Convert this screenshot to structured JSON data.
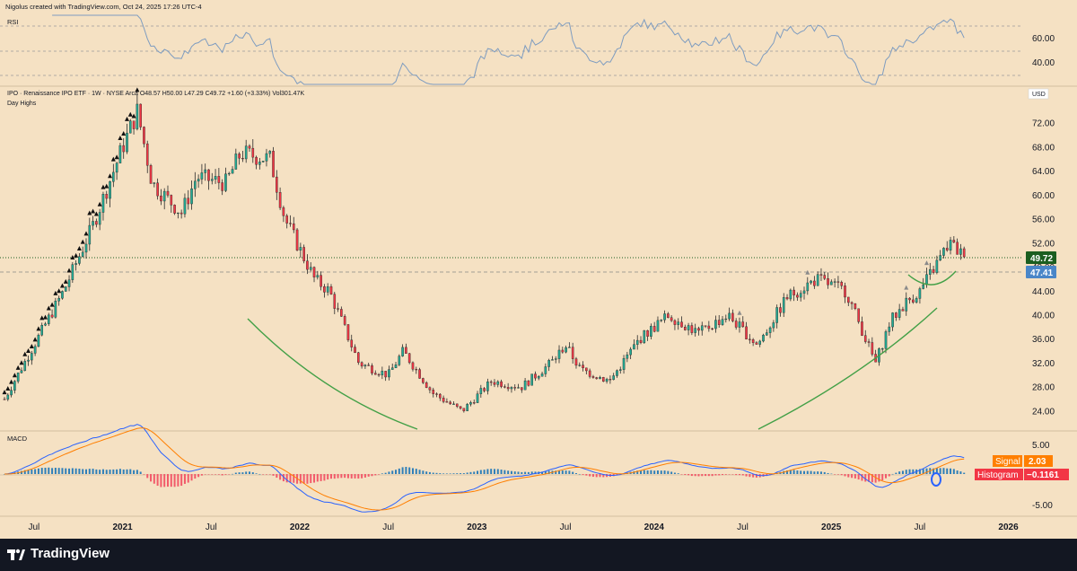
{
  "header": {
    "credit": "Nigolus created with TradingView.com, Oct 24, 2025 17:26 UTC-4"
  },
  "main_pane": {
    "symbol_line": "IPO · Renaissance IPO ETF · 1W · NYSE Arca  O48.57  H50.00  L47.29  C49.72  +1.60 (+3.33%)  Vol301.47K",
    "study_label": "Day Highs",
    "currency": "USD",
    "last_price_label": "49.72",
    "last_price_color": "#1b5e20",
    "ma_price_label": "47.41",
    "ma_price_color": "#4a86c8"
  },
  "rsi_pane": {
    "label": "RSI",
    "ticks": [
      "60.00",
      "40.00"
    ]
  },
  "macd_pane": {
    "label": "MACD",
    "ticks": [
      "5.00",
      "-5.00"
    ],
    "signal_label": "Signal",
    "signal_value": "2.03",
    "histogram_label": "Histogram",
    "histogram_value": "−0.1161",
    "signal_color": "#ff7f00",
    "histogram_color": "#f23645"
  },
  "time_axis": [
    "Jul",
    "2021",
    "Jul",
    "2022",
    "Jul",
    "2023",
    "Jul",
    "2024",
    "Jul",
    "2025",
    "Jul",
    "2026"
  ],
  "footer": {
    "brand": "TradingView"
  },
  "colors": {
    "background": "#f5e1c3",
    "up_candle": "#22ab94",
    "down_candle": "#f23645",
    "rsi_line": "#7e9cc0",
    "macd_line": "#2962ff",
    "signal_line": "#ff7f00",
    "curve": "#43a047"
  },
  "chart_data": {
    "type": "candlestick",
    "timeframe": "1W",
    "x_range": [
      "2020-05",
      "2026-02"
    ],
    "price_axis": {
      "ticks": [
        "72.00",
        "68.00",
        "64.00",
        "60.00",
        "56.00",
        "52.00",
        "48.00",
        "44.00",
        "40.00",
        "36.00",
        "32.00",
        "28.00",
        "24.00"
      ],
      "range": [
        21,
        78
      ]
    },
    "price_path": [
      {
        "date": "2020-05",
        "close": 26
      },
      {
        "date": "2020-07",
        "close": 35
      },
      {
        "date": "2020-09",
        "close": 44
      },
      {
        "date": "2020-11",
        "close": 55
      },
      {
        "date": "2021-01",
        "close": 68
      },
      {
        "date": "2021-02",
        "close": 74
      },
      {
        "date": "2021-03",
        "close": 62
      },
      {
        "date": "2021-05",
        "close": 57
      },
      {
        "date": "2021-06",
        "close": 63
      },
      {
        "date": "2021-08",
        "close": 62
      },
      {
        "date": "2021-09",
        "close": 67
      },
      {
        "date": "2021-11",
        "close": 66
      },
      {
        "date": "2021-12",
        "close": 56
      },
      {
        "date": "2022-02",
        "close": 46
      },
      {
        "date": "2022-03",
        "close": 44
      },
      {
        "date": "2022-05",
        "close": 32
      },
      {
        "date": "2022-07",
        "close": 30
      },
      {
        "date": "2022-08",
        "close": 34
      },
      {
        "date": "2022-10",
        "close": 27
      },
      {
        "date": "2022-12",
        "close": 24
      },
      {
        "date": "2023-02",
        "close": 29
      },
      {
        "date": "2023-04",
        "close": 28
      },
      {
        "date": "2023-06",
        "close": 32
      },
      {
        "date": "2023-07",
        "close": 35
      },
      {
        "date": "2023-08",
        "close": 31
      },
      {
        "date": "2023-10",
        "close": 29
      },
      {
        "date": "2023-12",
        "close": 36
      },
      {
        "date": "2024-02",
        "close": 40
      },
      {
        "date": "2024-04",
        "close": 37
      },
      {
        "date": "2024-06",
        "close": 40
      },
      {
        "date": "2024-08",
        "close": 35
      },
      {
        "date": "2024-10",
        "close": 43
      },
      {
        "date": "2024-12",
        "close": 46
      },
      {
        "date": "2025-02",
        "close": 44
      },
      {
        "date": "2025-04",
        "close": 32
      },
      {
        "date": "2025-05",
        "close": 39
      },
      {
        "date": "2025-06",
        "close": 42
      },
      {
        "date": "2025-07",
        "close": 44
      },
      {
        "date": "2025-09",
        "close": 52
      },
      {
        "date": "2025-10",
        "close": 49.72
      }
    ],
    "last_close": 49.72,
    "ma_value": 47.41,
    "rsi": {
      "ticks": [
        60,
        40
      ],
      "range": [
        24,
        80
      ],
      "last": 58
    },
    "macd": {
      "ticks": [
        5,
        -5
      ],
      "range": [
        -7,
        7
      ],
      "signal": 2.03,
      "histogram": -0.1161
    }
  }
}
